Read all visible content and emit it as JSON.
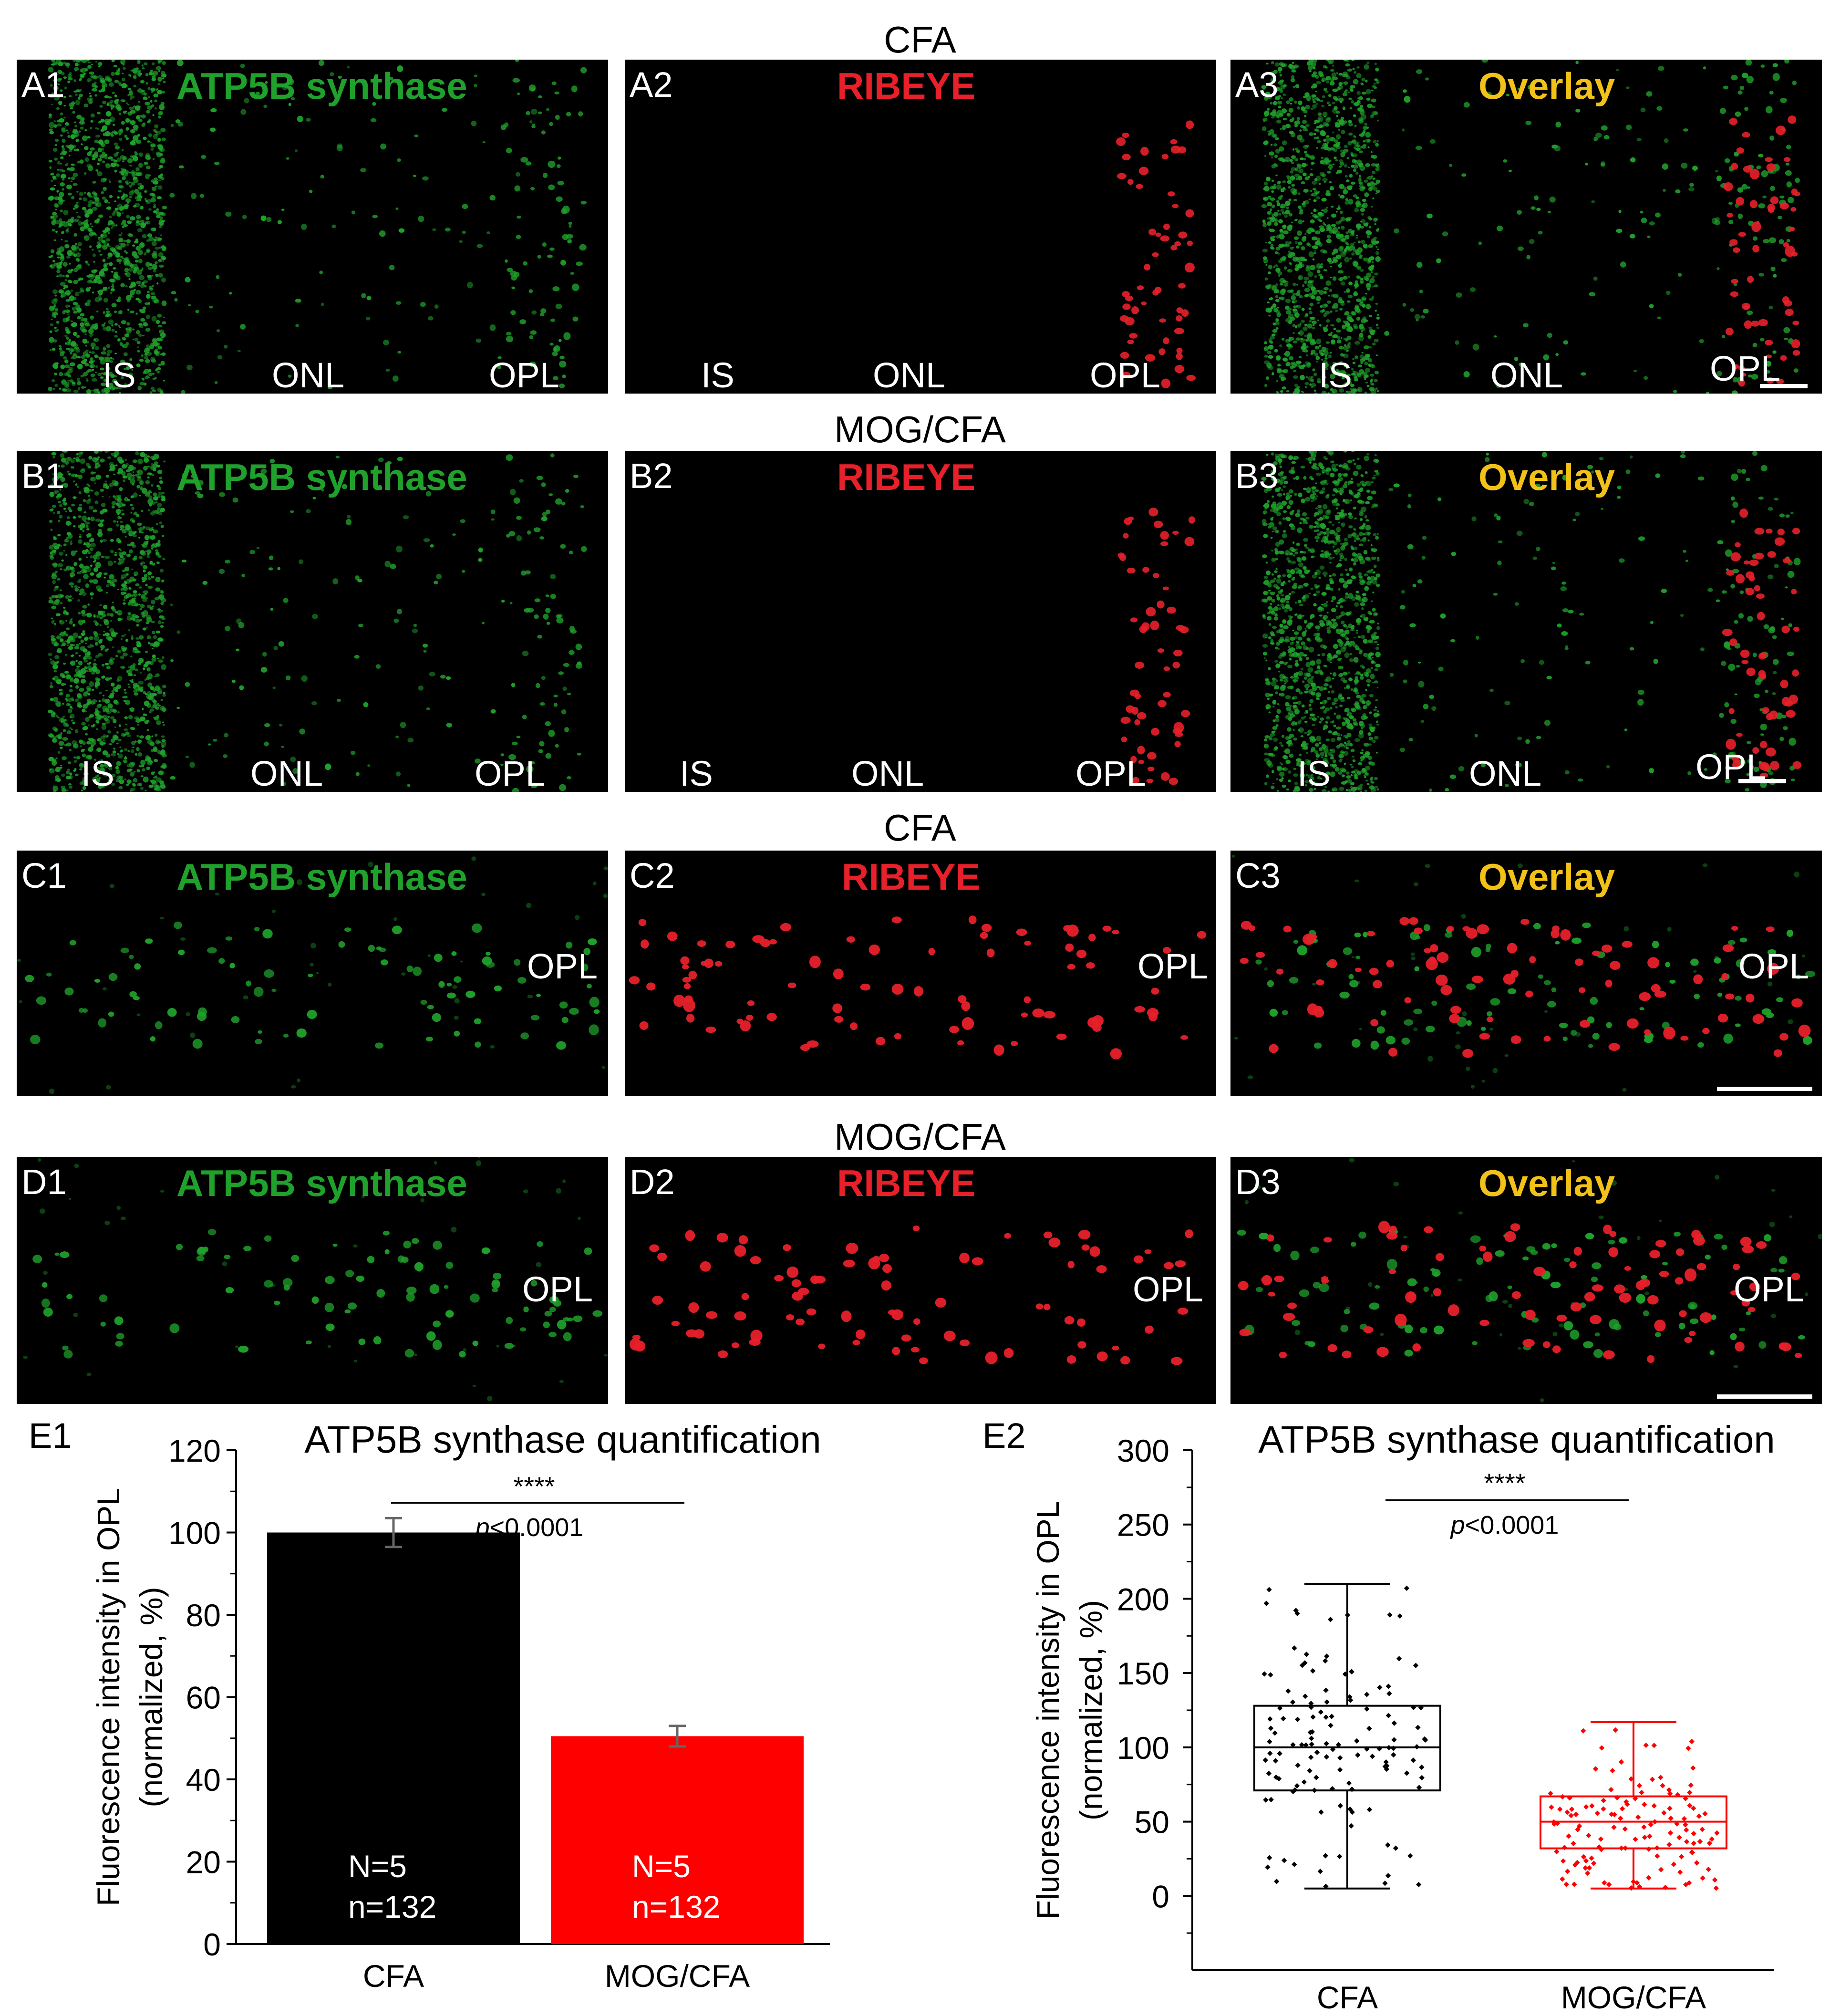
{
  "figure": {
    "row_titles": [
      "CFA",
      "MOG/CFA",
      "CFA",
      "MOG/CFA"
    ],
    "panels": {
      "A1": {
        "label": "A1",
        "title": "ATP5B synthase"
      },
      "A2": {
        "label": "A2",
        "title": "RIBEYE"
      },
      "A3": {
        "label": "A3",
        "title": "Overlay"
      },
      "B1": {
        "label": "B1",
        "title": "ATP5B synthase"
      },
      "B2": {
        "label": "B2",
        "title": "RIBEYE"
      },
      "B3": {
        "label": "B3",
        "title": "Overlay"
      },
      "C1": {
        "label": "C1",
        "title": "ATP5B synthase"
      },
      "C2": {
        "label": "C2",
        "title": "RIBEYE"
      },
      "C3": {
        "label": "C3",
        "title": "Overlay"
      },
      "D1": {
        "label": "D1",
        "title": "ATP5B synthase"
      },
      "D2": {
        "label": "D2",
        "title": "RIBEYE"
      },
      "D3": {
        "label": "D3",
        "title": "Overlay"
      }
    },
    "layers": {
      "is": "IS",
      "onl": "ONL",
      "opl": "OPL"
    },
    "colors": {
      "green": "#1fa12b",
      "red": "#e8202a",
      "overlay_title": "#f2c218",
      "bar_cfa": "#000000",
      "bar_mog": "#ff0000"
    }
  },
  "chart_data": [
    {
      "panel_label": "E1",
      "type": "bar",
      "title": "ATP5B synthase quantification",
      "ylabel": "Fluorescence intensity in OPL (normalized, %)",
      "ylabel_line1": "Fluorescence intensity in OPL",
      "ylabel_line2": "(normalized, %)",
      "ylim": [
        0,
        120
      ],
      "yticks": [
        0,
        20,
        40,
        60,
        80,
        100,
        120
      ],
      "categories": [
        "CFA",
        "MOG/CFA"
      ],
      "values": [
        100,
        50.5
      ],
      "errors": [
        3.5,
        2.5
      ],
      "bar_text": [
        [
          "N=5",
          "n=132"
        ],
        [
          "N=5",
          "n=132"
        ]
      ],
      "significance": "****",
      "pvalue_label": "p",
      "pvalue_text": "<0.0001"
    },
    {
      "panel_label": "E2",
      "type": "box",
      "title": "ATP5B synthase quantification",
      "ylabel_line1": "Fluorescence intensity in OPL",
      "ylabel_line2": "(normalized, %)",
      "ylim": [
        -50,
        300
      ],
      "yticks": [
        0,
        50,
        100,
        150,
        200,
        250,
        300
      ],
      "categories": [
        "CFA",
        "MOG/CFA"
      ],
      "boxes": [
        {
          "name": "CFA",
          "whisker_low": 5,
          "q1": 71,
          "median": 100,
          "q3": 128,
          "whisker_high": 210,
          "n": 132
        },
        {
          "name": "MOG/CFA",
          "whisker_low": 5,
          "q1": 32,
          "median": 50,
          "q3": 67,
          "whisker_high": 117,
          "n": 132
        }
      ],
      "significance": "****",
      "pvalue_label": "p",
      "pvalue_text": "<0.0001"
    }
  ]
}
